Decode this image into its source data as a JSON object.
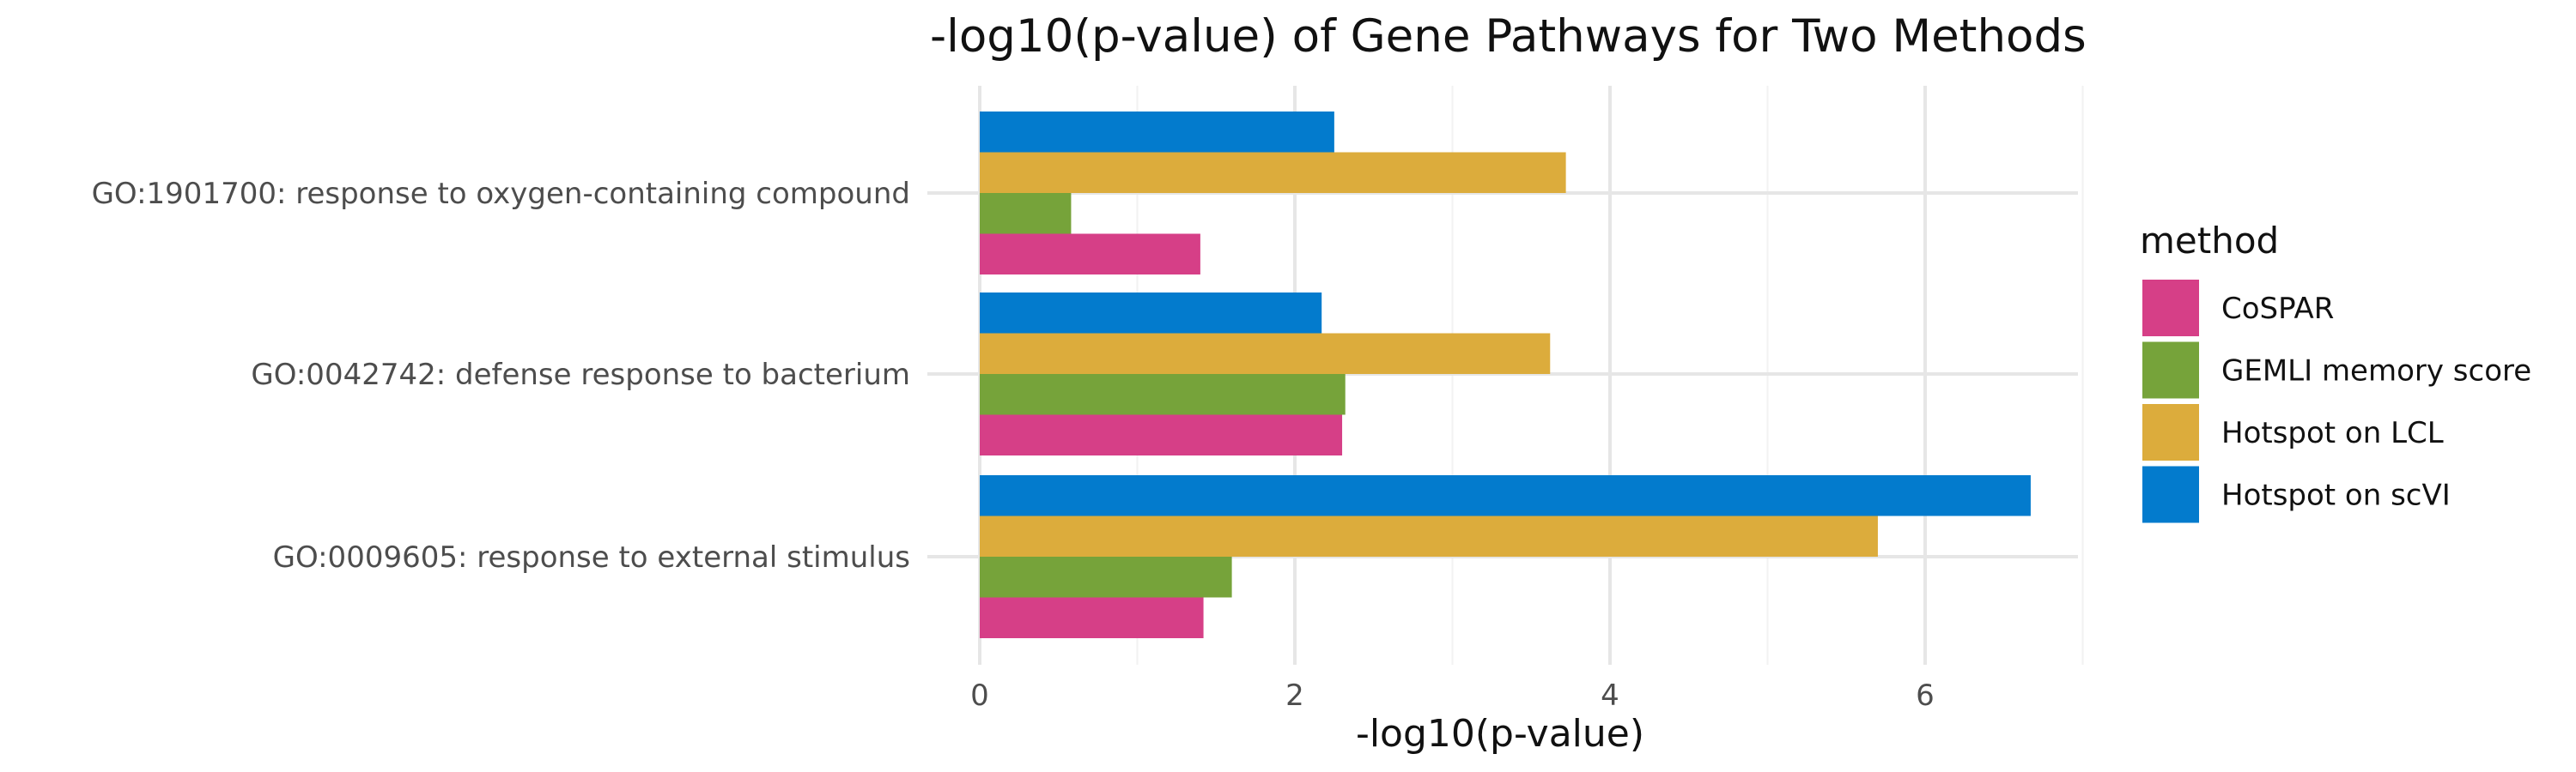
{
  "chart_data": {
    "type": "bar",
    "orientation": "horizontal",
    "title": "-log10(p-value) of Gene Pathways for Two Methods",
    "xlabel": "-log10(p-value)",
    "ylabel": "",
    "xlim": [
      0,
      7
    ],
    "x_ticks": [
      0,
      2,
      4,
      6
    ],
    "grid": true,
    "categories": [
      "GO:1901700: response to oxygen-containing compound",
      "GO:0042742: defense response to bacterium",
      "GO:0009605: response to external stimulus"
    ],
    "legend": {
      "title": "method",
      "position": "right"
    },
    "series": [
      {
        "name": "CoSPAR",
        "color": "#D63F87",
        "values": [
          1.4,
          2.3,
          1.42
        ]
      },
      {
        "name": "GEMLI memory score",
        "color": "#76A33A",
        "values": [
          0.58,
          2.32,
          1.6
        ]
      },
      {
        "name": "Hotspot on LCL",
        "color": "#DCAC3C",
        "values": [
          3.72,
          3.62,
          5.7
        ]
      },
      {
        "name": "Hotspot on scVI",
        "color": "#037BCD",
        "values": [
          2.25,
          2.17,
          6.67
        ]
      }
    ]
  }
}
